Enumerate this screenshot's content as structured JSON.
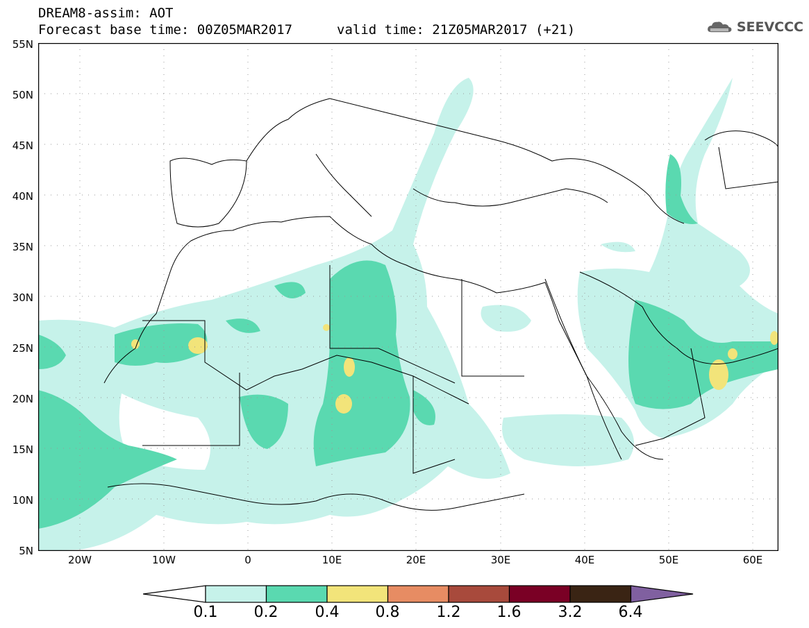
{
  "header": {
    "line1": "DREAM8-assim: AOT",
    "line2": "Forecast base time: 00Z05MAR2017",
    "valid": "valid time: 21Z05MAR2017 (+21)"
  },
  "logo": {
    "text": "SEEVCCC",
    "icon": "cloud-icon"
  },
  "map": {
    "lat_labels": [
      "55N",
      "50N",
      "45N",
      "40N",
      "35N",
      "30N",
      "25N",
      "20N",
      "15N",
      "10N",
      "5N"
    ],
    "lon_labels": [
      "20W",
      "10W",
      "0",
      "10E",
      "20E",
      "30E",
      "40E",
      "50E",
      "60E"
    ],
    "colors": {
      "land_border": "#000000",
      "c0_1": "#c6f2ea",
      "c0_2": "#5ad9b0",
      "c0_4": "#f2e47a"
    }
  },
  "colorbar": {
    "labels": [
      "0.1",
      "0.2",
      "0.4",
      "0.8",
      "1.2",
      "1.6",
      "3.2",
      "6.4"
    ],
    "colors": [
      "#ffffff",
      "#c6f2ea",
      "#5ad9b0",
      "#f2e47a",
      "#e78c63",
      "#a84a3c",
      "#7a0025",
      "#3a2414",
      "#8060a0"
    ]
  }
}
